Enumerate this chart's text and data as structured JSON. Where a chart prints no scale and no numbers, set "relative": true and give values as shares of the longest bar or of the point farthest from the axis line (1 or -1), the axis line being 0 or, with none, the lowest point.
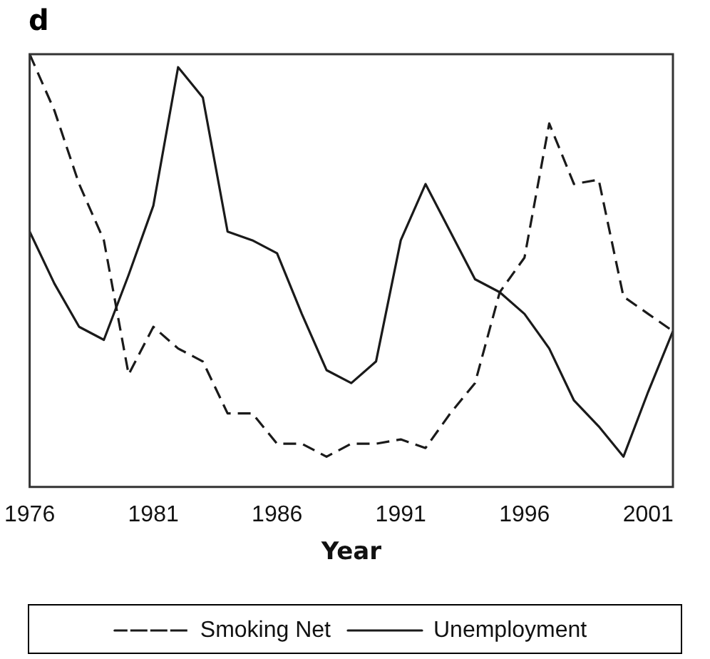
{
  "chart_data": {
    "type": "line",
    "title": "d",
    "xlabel": "Year",
    "relative": true,
    "marker": "none",
    "legend": "bottom",
    "grid": false,
    "x": [
      1976,
      1977,
      1978,
      1979,
      1980,
      1981,
      1982,
      1983,
      1984,
      1985,
      1986,
      1987,
      1988,
      1989,
      1990,
      1991,
      1992,
      1993,
      1994,
      1995,
      1996,
      1997,
      1998,
      1999,
      2000,
      2001,
      2002
    ],
    "xlim": [
      1976,
      2002
    ],
    "xticks": [
      1976,
      1981,
      1986,
      1991,
      1996,
      2001
    ],
    "series": [
      {
        "name": "Smoking Net",
        "color": "#1a1a1a",
        "line_style": "dashed",
        "values": [
          1.0,
          0.87,
          0.7,
          0.57,
          0.26,
          0.37,
          0.32,
          0.29,
          0.17,
          0.17,
          0.1,
          0.1,
          0.07,
          0.1,
          0.1,
          0.11,
          0.09,
          0.17,
          0.24,
          0.45,
          0.53,
          0.84,
          0.7,
          0.71,
          0.44,
          0.4,
          0.36
        ]
      },
      {
        "name": "Unemployment",
        "color": "#1a1a1a",
        "line_style": "solid",
        "values": [
          0.59,
          0.47,
          0.37,
          0.34,
          0.49,
          0.65,
          0.97,
          0.9,
          0.59,
          0.57,
          0.54,
          0.4,
          0.27,
          0.24,
          0.29,
          0.57,
          0.7,
          0.59,
          0.48,
          0.45,
          0.4,
          0.32,
          0.2,
          0.14,
          0.07,
          0.22,
          0.36
        ]
      }
    ]
  }
}
